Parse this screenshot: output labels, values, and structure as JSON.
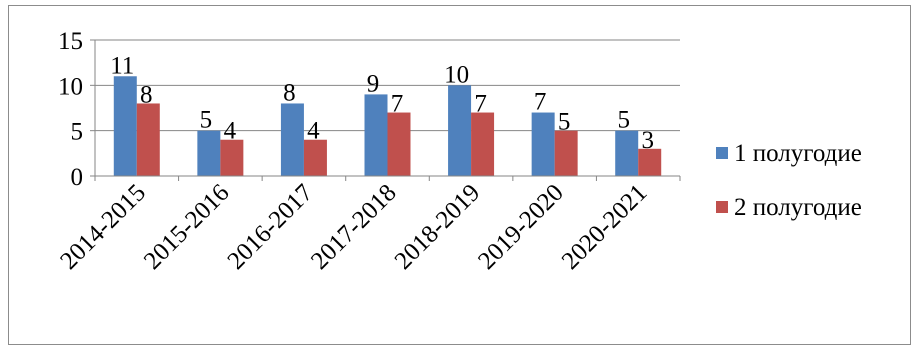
{
  "chart_data": {
    "type": "bar",
    "categories": [
      "2014-2015",
      "2015-2016",
      "2016-2017",
      "2017-2018",
      "2018-2019",
      "2019-2020",
      "2020-2021"
    ],
    "series": [
      {
        "name": "1 полугодие",
        "values": [
          11,
          5,
          8,
          9,
          10,
          7,
          5
        ],
        "color": "#4f81bd"
      },
      {
        "name": "2 полугодие",
        "values": [
          8,
          4,
          4,
          7,
          7,
          5,
          3
        ],
        "color": "#c0504d"
      }
    ],
    "y_ticks": [
      "0",
      "5",
      "10",
      "15"
    ],
    "ylim": [
      0,
      15
    ],
    "grid": true,
    "legend_position": "right",
    "data_labels": true
  }
}
